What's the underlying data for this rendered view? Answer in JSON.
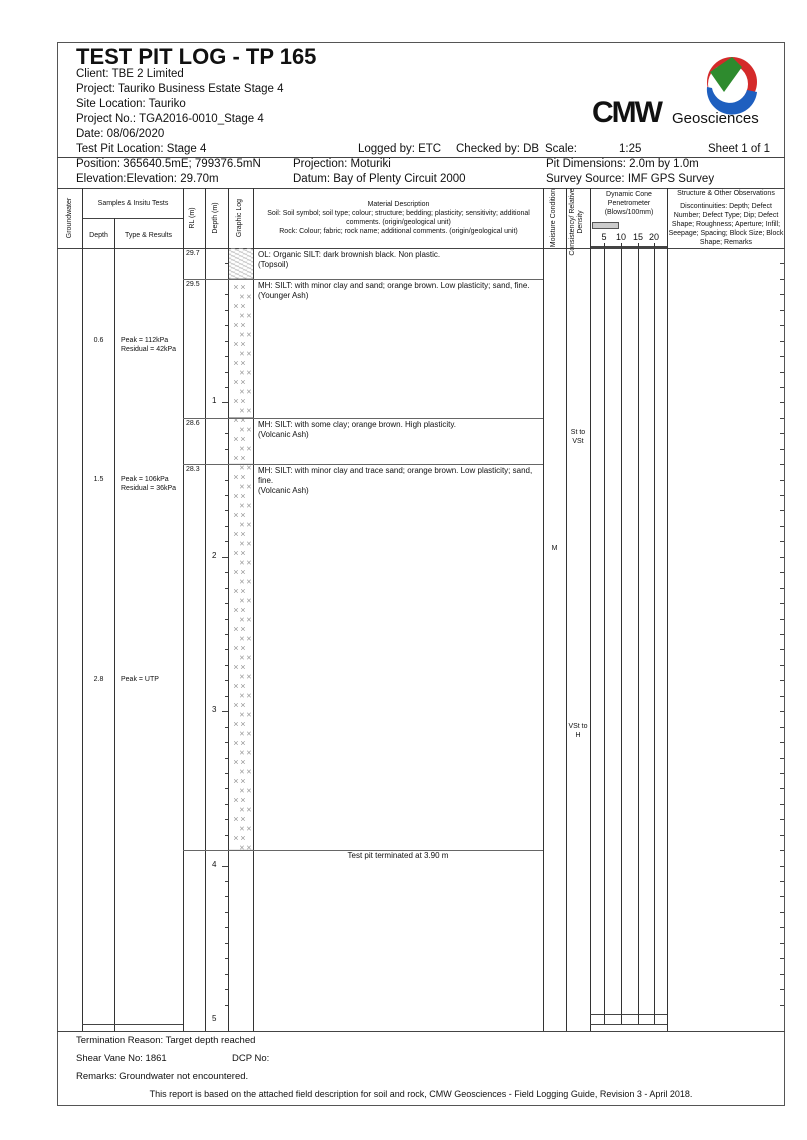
{
  "header": {
    "title": "TEST PIT LOG - TP 165",
    "client": "Client: TBE 2 Limited",
    "project": "Project: Tauriko Business Estate Stage 4",
    "site": "Site Location: Tauriko",
    "project_no": "Project No.: TGA2016-0010_Stage 4",
    "date": "Date: 08/06/2020",
    "location": "Test Pit Location: Stage 4",
    "logged_by": "Logged by: ETC",
    "checked_by": "Checked by: DB",
    "scale_label": "Scale:",
    "scale": "1:25",
    "sheet": "Sheet 1 of 1",
    "position": "Position:  365640.5mE;  799376.5mN",
    "projection": "Projection:  Moturiki",
    "pit_dimensions": "Pit Dimensions: 2.0m by 1.0m",
    "elevation": "Elevation:Elevation: 29.70m",
    "datum": "Datum:  Bay of Plenty Circuit 2000",
    "survey_source": "Survey Source:  IMF GPS Survey"
  },
  "logo": {
    "text": "CMW",
    "subtext": "Geosciences",
    "colors": [
      "#2e8b2e",
      "#d42a2a",
      "#1e5fbf"
    ]
  },
  "columns": {
    "groundwater": "Groundwater",
    "samples": "Samples & Insitu Tests",
    "depth": "Depth",
    "type": "Type & Results",
    "rl": "RL (m)",
    "depth_m": "Depth (m)",
    "graphic": "Graphic Log",
    "material_title": "Material Description",
    "material_soil": "Soil: Soil symbol; soil type; colour; structure; bedding; plasticity; sensitivity; additional comments. (origin/geological unit)",
    "material_rock": "Rock: Colour; fabric; rock name; additional comments. (origin/geological unit)",
    "moisture": "Moisture Condition",
    "consistency": "Consistency/ Relative Density",
    "dcp": "Dynamic Cone Penetrometer (Blows/100mm)",
    "dcp_ticks": [
      "5",
      "10",
      "15",
      "20"
    ],
    "structure_title": "Structure & Other Observations",
    "structure_desc": "Discontinuities: Depth; Defect Number; Defect Type; Dip; Defect Shape; Roughness; Aperture; Infill; Seepage; Spacing; Block Size; Block Shape; Remarks"
  },
  "depth_labels": [
    "1",
    "2",
    "3",
    "4",
    "5"
  ],
  "layers": [
    {
      "depth": 0.0,
      "rl": "29.7",
      "text": "OL: Organic SILT: dark brownish black. Non plastic.",
      "unit": "(Topsoil)"
    },
    {
      "depth": 0.2,
      "rl": "29.5",
      "text": "MH: SILT: with minor clay and sand; orange brown. Low plasticity; sand, fine.",
      "unit": "(Younger Ash)"
    },
    {
      "depth": 1.1,
      "rl": "28.6",
      "text": "MH: SILT: with some clay; orange brown. High plasticity.",
      "unit": "(Volcanic Ash)"
    },
    {
      "depth": 1.4,
      "rl": "28.3",
      "text": "MH: SILT: with minor clay and trace sand; orange brown. Low plasticity; sand, fine.",
      "unit": "(Volcanic Ash)"
    }
  ],
  "termination": {
    "depth": 3.9,
    "text": "Test pit terminated at 3.90 m"
  },
  "samples": [
    {
      "depth": 0.6,
      "depth_label": "0.6",
      "result": "Peak = 112kPa\nResidual = 42kPa"
    },
    {
      "depth": 1.5,
      "depth_label": "1.5",
      "result": "Peak = 106kPa\nResidual = 36kPa"
    },
    {
      "depth": 2.8,
      "depth_label": "2.8",
      "result": "Peak = UTP"
    }
  ],
  "moisture": [
    {
      "depth": 1.95,
      "text": "M"
    }
  ],
  "consistency": [
    {
      "depth": 1.2,
      "text": "St to\nVSt"
    },
    {
      "depth": 3.1,
      "text": "VSt to\nH"
    }
  ],
  "footer": {
    "termination": "Termination Reason:  Target depth reached",
    "shear_vane": "Shear Vane No:   1861",
    "dcp_no": "DCP No:",
    "remarks": "Remarks:  Groundwater not encountered.",
    "note": "This report is based on the attached field description for soil and rock, CMW Geosciences - Field Logging Guide, Revision 3 - April 2018."
  }
}
